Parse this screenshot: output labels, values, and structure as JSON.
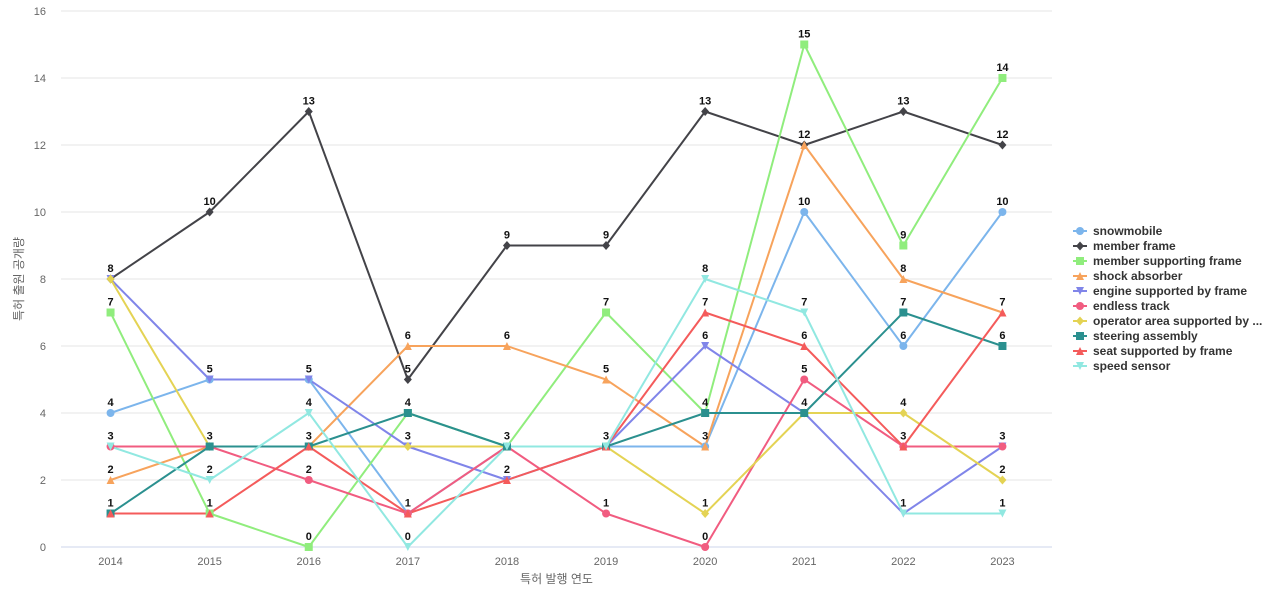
{
  "chart_data": {
    "type": "line",
    "title": "",
    "xlabel": "특허 발행 연도",
    "ylabel": "특허 출원 공개량",
    "categories": [
      "2014",
      "2015",
      "2016",
      "2017",
      "2018",
      "2019",
      "2020",
      "2021",
      "2022",
      "2023"
    ],
    "ylim": [
      0,
      16
    ],
    "yticks": [
      0,
      2,
      4,
      6,
      8,
      10,
      12,
      14,
      16
    ],
    "grid": true,
    "legend_position": "right",
    "series": [
      {
        "name": "snowmobile",
        "color": "#7cb5ec",
        "marker": "circle",
        "values": [
          4,
          5,
          5,
          1,
          3,
          3,
          3,
          10,
          6,
          10
        ]
      },
      {
        "name": "member frame",
        "color": "#434348",
        "marker": "diamond",
        "values": [
          8,
          10,
          13,
          5,
          9,
          9,
          13,
          12,
          13,
          12
        ]
      },
      {
        "name": "member supporting frame",
        "color": "#90ed7d",
        "marker": "square",
        "values": [
          7,
          1,
          0,
          4,
          3,
          7,
          4,
          15,
          9,
          14
        ]
      },
      {
        "name": "shock absorber",
        "color": "#f7a35c",
        "marker": "triangle",
        "values": [
          2,
          3,
          3,
          6,
          6,
          5,
          3,
          12,
          8,
          7
        ]
      },
      {
        "name": "engine supported by frame",
        "color": "#8085e9",
        "marker": "triangle-down",
        "values": [
          8,
          5,
          5,
          3,
          2,
          3,
          6,
          4,
          1,
          3
        ]
      },
      {
        "name": "endless track",
        "color": "#f15c80",
        "marker": "circle",
        "values": [
          3,
          3,
          2,
          1,
          3,
          1,
          0,
          5,
          3,
          3
        ]
      },
      {
        "name": "operator area supported by ...",
        "color": "#e4d354",
        "marker": "diamond",
        "values": [
          8,
          3,
          3,
          3,
          3,
          3,
          1,
          4,
          4,
          2
        ]
      },
      {
        "name": "steering assembly",
        "color": "#2b908f",
        "marker": "square",
        "values": [
          1,
          3,
          3,
          4,
          3,
          3,
          4,
          4,
          7,
          6
        ]
      },
      {
        "name": "seat supported by frame",
        "color": "#f45b5b",
        "marker": "triangle",
        "values": [
          1,
          1,
          3,
          1,
          2,
          3,
          7,
          6,
          3,
          7
        ]
      },
      {
        "name": "speed sensor",
        "color": "#91e8e1",
        "marker": "triangle-down",
        "values": [
          3,
          2,
          4,
          0,
          3,
          3,
          8,
          7,
          1,
          1
        ]
      }
    ],
    "data_labels": [
      {
        "x": "2014",
        "text": "8",
        "color": "#434348"
      },
      {
        "x": "2014",
        "text": "7",
        "color": "#90ed7d"
      },
      {
        "x": "2014",
        "text": "4",
        "color": "#7cb5ec"
      },
      {
        "x": "2014",
        "text": "3",
        "color": "#f15c80"
      },
      {
        "x": "2014",
        "text": "2",
        "color": "#f7a35c"
      },
      {
        "x": "2014",
        "text": "1",
        "color": "#2b908f"
      },
      {
        "x": "2015",
        "text": "10",
        "color": "#434348"
      },
      {
        "x": "2015",
        "text": "5",
        "color": "#7cb5ec"
      },
      {
        "x": "2015",
        "text": "3",
        "color": "#2b908f"
      },
      {
        "x": "2015",
        "text": "2",
        "color": "#91e8e1"
      },
      {
        "x": "2015",
        "text": "1",
        "color": "#90ed7d"
      },
      {
        "x": "2016",
        "text": "13",
        "color": "#434348"
      },
      {
        "x": "2016",
        "text": "5",
        "color": "#8085e9"
      },
      {
        "x": "2016",
        "text": "4",
        "color": "#91e8e1"
      },
      {
        "x": "2016",
        "text": "3",
        "color": "#2b908f"
      },
      {
        "x": "2016",
        "text": "2",
        "color": "#f15c80"
      },
      {
        "x": "2016",
        "text": "0",
        "color": "#90ed7d"
      },
      {
        "x": "2017",
        "text": "6",
        "color": "#f7a35c"
      },
      {
        "x": "2017",
        "text": "5",
        "color": "#434348"
      },
      {
        "x": "2017",
        "text": "4",
        "color": "#2b908f"
      },
      {
        "x": "2017",
        "text": "3",
        "color": "#e4d354"
      },
      {
        "x": "2017",
        "text": "1",
        "color": "#f15c80"
      },
      {
        "x": "2017",
        "text": "0",
        "color": "#91e8e1"
      },
      {
        "x": "2018",
        "text": "9",
        "color": "#434348"
      },
      {
        "x": "2018",
        "text": "6",
        "color": "#f7a35c"
      },
      {
        "x": "2018",
        "text": "3",
        "color": "#2b908f"
      },
      {
        "x": "2018",
        "text": "2",
        "color": "#f45b5b"
      },
      {
        "x": "2019",
        "text": "9",
        "color": "#434348"
      },
      {
        "x": "2019",
        "text": "7",
        "color": "#90ed7d"
      },
      {
        "x": "2019",
        "text": "5",
        "color": "#f7a35c"
      },
      {
        "x": "2019",
        "text": "3",
        "color": "#2b908f"
      },
      {
        "x": "2019",
        "text": "1",
        "color": "#f15c80"
      },
      {
        "x": "2020",
        "text": "13",
        "color": "#434348"
      },
      {
        "x": "2020",
        "text": "8",
        "color": "#91e8e1"
      },
      {
        "x": "2020",
        "text": "7",
        "color": "#f45b5b"
      },
      {
        "x": "2020",
        "text": "6",
        "color": "#8085e9"
      },
      {
        "x": "2020",
        "text": "4",
        "color": "#2b908f"
      },
      {
        "x": "2020",
        "text": "3",
        "color": "#f7a35c"
      },
      {
        "x": "2020",
        "text": "1",
        "color": "#e4d354"
      },
      {
        "x": "2020",
        "text": "0",
        "color": "#f15c80"
      },
      {
        "x": "2021",
        "text": "15",
        "color": "#90ed7d"
      },
      {
        "x": "2021",
        "text": "12",
        "color": "#434348"
      },
      {
        "x": "2021",
        "text": "10",
        "color": "#7cb5ec"
      },
      {
        "x": "2021",
        "text": "7",
        "color": "#91e8e1"
      },
      {
        "x": "2021",
        "text": "6",
        "color": "#f45b5b"
      },
      {
        "x": "2021",
        "text": "5",
        "color": "#f15c80"
      },
      {
        "x": "2021",
        "text": "4",
        "color": "#2b908f"
      },
      {
        "x": "2022",
        "text": "13",
        "color": "#434348"
      },
      {
        "x": "2022",
        "text": "9",
        "color": "#90ed7d"
      },
      {
        "x": "2022",
        "text": "8",
        "color": "#f7a35c"
      },
      {
        "x": "2022",
        "text": "7",
        "color": "#2b908f"
      },
      {
        "x": "2022",
        "text": "6",
        "color": "#7cb5ec"
      },
      {
        "x": "2022",
        "text": "4",
        "color": "#e4d354"
      },
      {
        "x": "2022",
        "text": "3",
        "color": "#f45b5b"
      },
      {
        "x": "2022",
        "text": "1",
        "color": "#8085e9"
      },
      {
        "x": "2023",
        "text": "14",
        "color": "#90ed7d"
      },
      {
        "x": "2023",
        "text": "12",
        "color": "#434348"
      },
      {
        "x": "2023",
        "text": "10",
        "color": "#7cb5ec"
      },
      {
        "x": "2023",
        "text": "7",
        "color": "#f45b5b"
      },
      {
        "x": "2023",
        "text": "6",
        "color": "#2b908f"
      },
      {
        "x": "2023",
        "text": "3",
        "color": "#f15c80"
      },
      {
        "x": "2023",
        "text": "2",
        "color": "#e4d354"
      },
      {
        "x": "2023",
        "text": "1",
        "color": "#91e8e1"
      }
    ]
  }
}
